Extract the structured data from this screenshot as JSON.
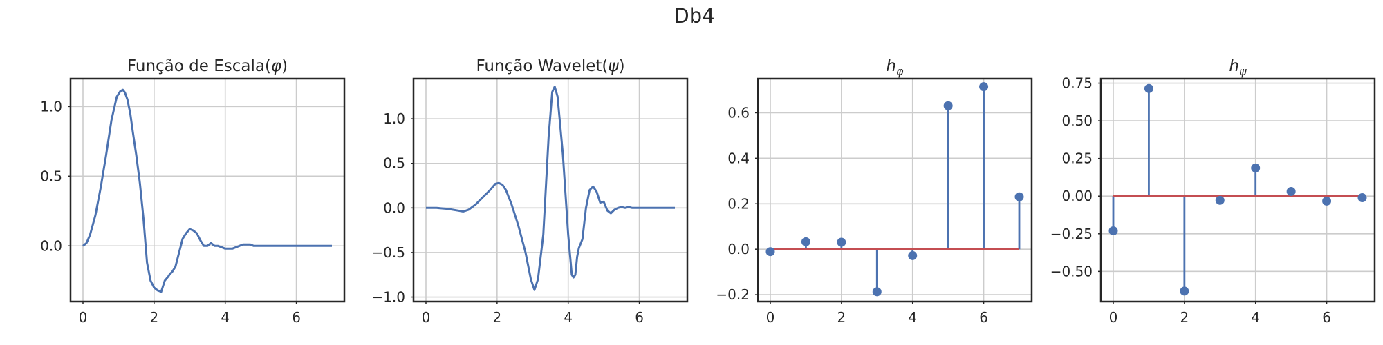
{
  "figure": {
    "title": "Db4"
  },
  "chart_data": [
    {
      "type": "line",
      "title": "Função de Escala(φ)",
      "xlabel": "",
      "ylabel": "",
      "xlim": [
        -0.35,
        7.35
      ],
      "ylim": [
        -0.4,
        1.2
      ],
      "xticks": [
        0,
        2,
        4,
        6
      ],
      "yticks": [
        0.0,
        0.5,
        1.0
      ],
      "x": [
        0,
        0.1,
        0.2,
        0.35,
        0.5,
        0.65,
        0.8,
        0.95,
        1.05,
        1.12,
        1.18,
        1.25,
        1.33,
        1.4,
        1.5,
        1.6,
        1.7,
        1.8,
        1.9,
        2.0,
        2.1,
        2.2,
        2.3,
        2.4,
        2.45,
        2.5,
        2.6,
        2.7,
        2.8,
        2.9,
        3.0,
        3.1,
        3.2,
        3.3,
        3.4,
        3.5,
        3.55,
        3.6,
        3.65,
        3.7,
        3.8,
        3.9,
        4.0,
        4.1,
        4.2,
        4.3,
        4.4,
        4.5,
        4.6,
        4.7,
        4.8,
        5.0,
        5.2,
        5.4,
        5.6,
        6.0,
        6.5,
        7.0
      ],
      "series": [
        {
          "values": [
            0,
            0.02,
            0.08,
            0.22,
            0.42,
            0.65,
            0.9,
            1.07,
            1.11,
            1.12,
            1.1,
            1.05,
            0.95,
            0.82,
            0.65,
            0.45,
            0.2,
            -0.12,
            -0.25,
            -0.3,
            -0.32,
            -0.33,
            -0.25,
            -0.22,
            -0.2,
            -0.19,
            -0.15,
            -0.05,
            0.05,
            0.09,
            0.12,
            0.11,
            0.09,
            0.04,
            0.0,
            0.0,
            0.01,
            0.02,
            0.01,
            0.0,
            0.0,
            -0.01,
            -0.02,
            -0.02,
            -0.02,
            -0.01,
            0.0,
            0.01,
            0.01,
            0.01,
            0.0,
            0.0,
            0.0,
            0.0,
            0.0,
            0.0,
            0.0,
            0.0
          ]
        }
      ]
    },
    {
      "type": "line",
      "title": "Função Wavelet(ψ)",
      "xlabel": "",
      "ylabel": "",
      "xlim": [
        -0.35,
        7.35
      ],
      "ylim": [
        -1.05,
        1.45
      ],
      "xticks": [
        0,
        2,
        4,
        6
      ],
      "yticks": [
        -1.0,
        -0.5,
        0.0,
        0.5,
        1.0
      ],
      "x": [
        0,
        0.3,
        0.6,
        0.9,
        1.05,
        1.2,
        1.4,
        1.6,
        1.8,
        1.95,
        2.05,
        2.15,
        2.25,
        2.4,
        2.6,
        2.8,
        2.95,
        3.05,
        3.15,
        3.3,
        3.45,
        3.55,
        3.62,
        3.7,
        3.85,
        4.0,
        4.1,
        4.15,
        4.2,
        4.25,
        4.3,
        4.4,
        4.5,
        4.6,
        4.7,
        4.8,
        4.9,
        5.0,
        5.1,
        5.2,
        5.3,
        5.4,
        5.5,
        5.6,
        5.7,
        5.8,
        6.0,
        6.5,
        7.0
      ],
      "series": [
        {
          "values": [
            0,
            0,
            -0.01,
            -0.03,
            -0.04,
            -0.02,
            0.04,
            0.12,
            0.2,
            0.27,
            0.28,
            0.26,
            0.2,
            0.05,
            -0.2,
            -0.5,
            -0.8,
            -0.92,
            -0.8,
            -0.3,
            0.8,
            1.3,
            1.36,
            1.25,
            0.6,
            -0.3,
            -0.75,
            -0.78,
            -0.75,
            -0.55,
            -0.45,
            -0.35,
            0.0,
            0.2,
            0.24,
            0.18,
            0.06,
            0.07,
            -0.03,
            -0.06,
            -0.02,
            0.0,
            0.01,
            0.0,
            0.01,
            0.0,
            0.0,
            0.0,
            0.0
          ]
        }
      ]
    },
    {
      "type": "stem",
      "title": "hφ",
      "xlabel": "",
      "ylabel": "",
      "xlim": [
        -0.35,
        7.35
      ],
      "ylim": [
        -0.23,
        0.75
      ],
      "xticks": [
        0,
        2,
        4,
        6
      ],
      "yticks": [
        -0.2,
        0.0,
        0.2,
        0.4,
        0.6
      ],
      "x": [
        0,
        1,
        2,
        3,
        4,
        5,
        6,
        7
      ],
      "values": [
        -0.0106,
        0.0329,
        0.0308,
        -0.187,
        -0.028,
        0.6309,
        0.7148,
        0.2304
      ]
    },
    {
      "type": "stem",
      "title": "hψ",
      "xlabel": "",
      "ylabel": "",
      "xlim": [
        -0.35,
        7.35
      ],
      "ylim": [
        -0.7,
        0.78
      ],
      "xticks": [
        0,
        2,
        4,
        6
      ],
      "yticks": [
        -0.5,
        -0.25,
        0.0,
        0.25,
        0.5,
        0.75
      ],
      "x": [
        0,
        1,
        2,
        3,
        4,
        5,
        6,
        7
      ],
      "values": [
        -0.2304,
        0.7148,
        -0.6309,
        -0.028,
        0.187,
        0.0308,
        -0.0329,
        -0.0106
      ]
    }
  ]
}
